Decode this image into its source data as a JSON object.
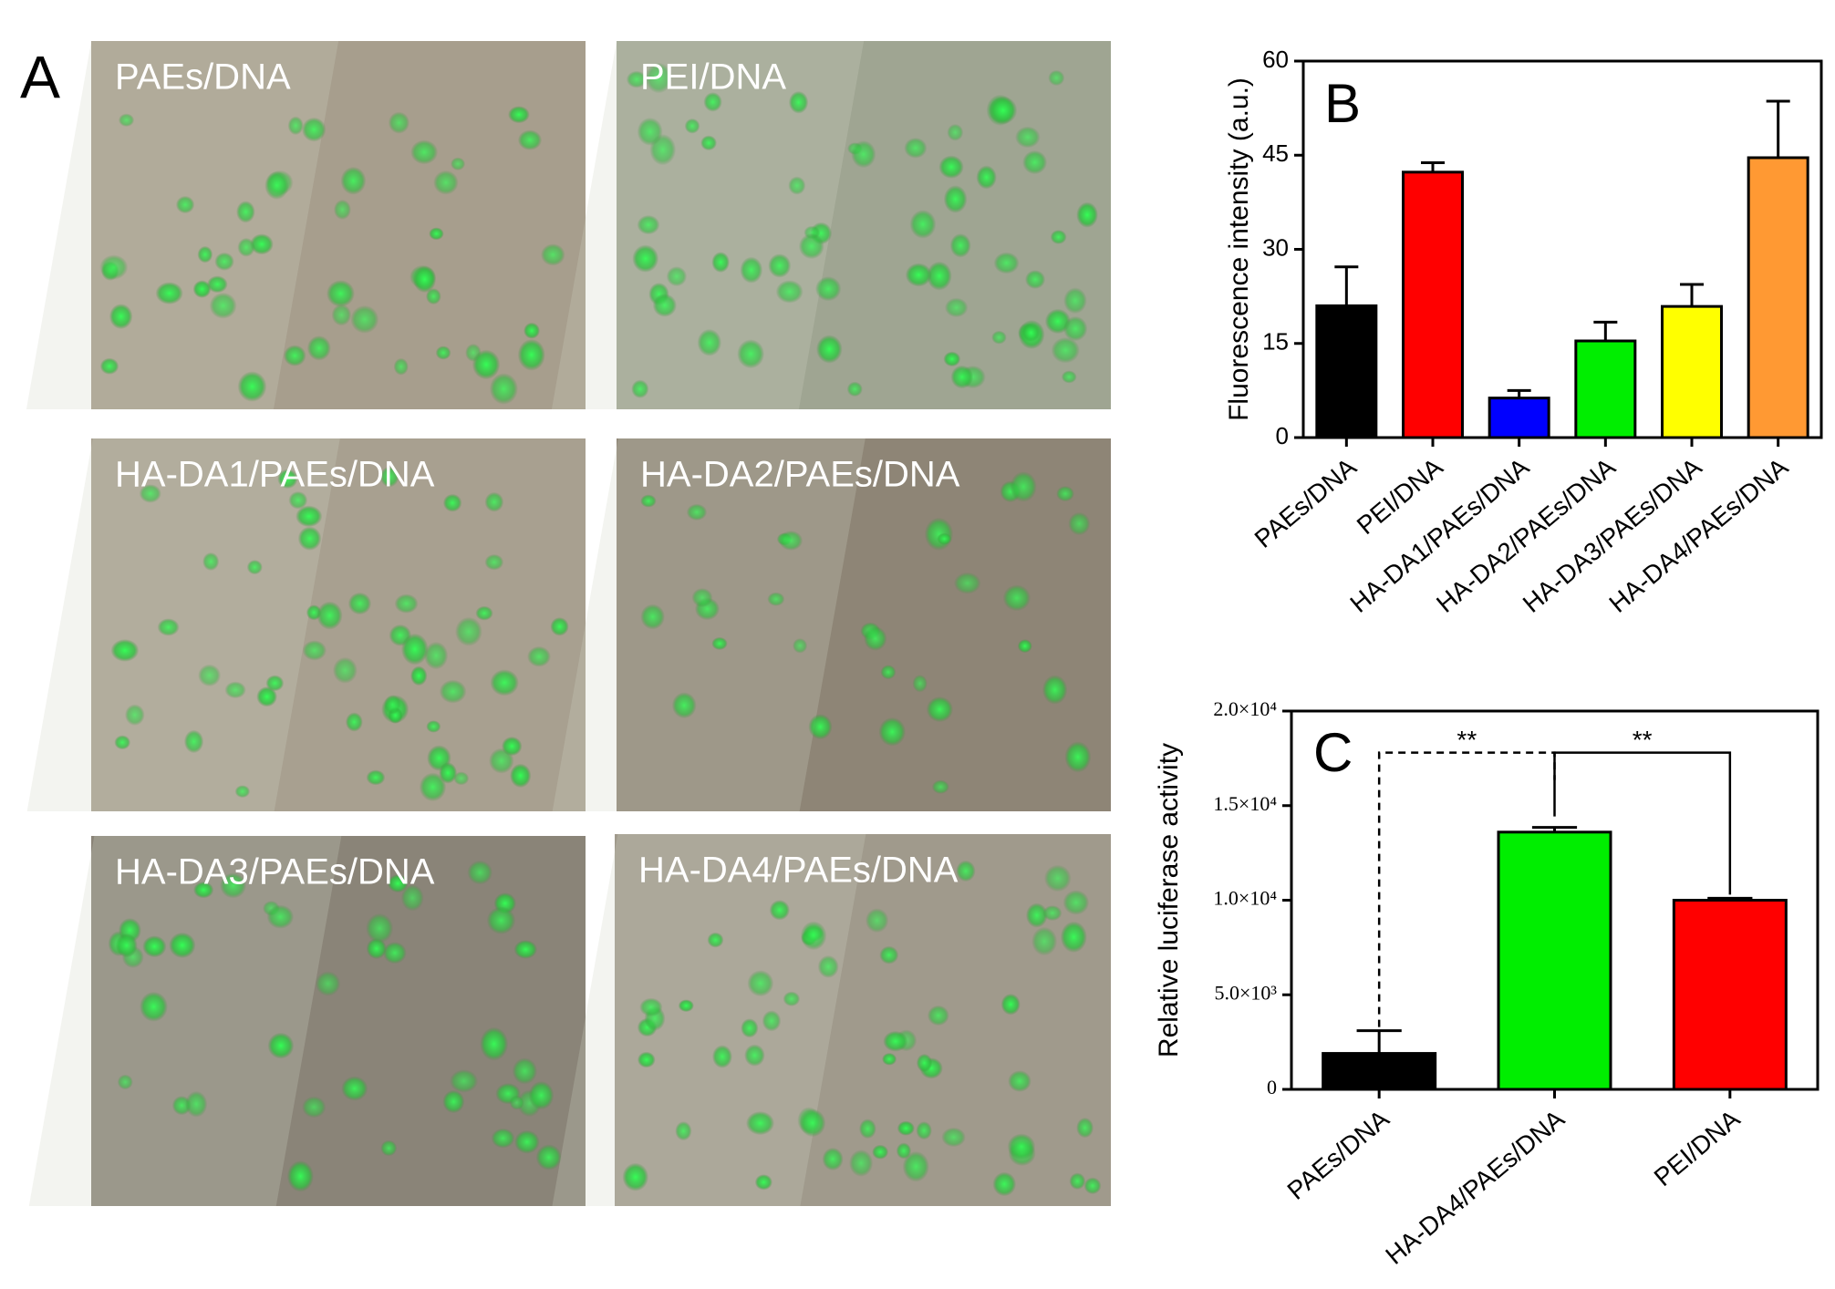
{
  "panel_a": {
    "label": "A",
    "images": [
      "PAEs/DNA",
      "PEI/DNA",
      "HA-DA1/PAEs/DNA",
      "HA-DA2/PAEs/DNA",
      "HA-DA3/PAEs/DNA",
      "HA-DA4/PAEs/DNA"
    ]
  },
  "chart_data": [
    {
      "type": "bar",
      "label": "B",
      "ylabel": "Fluorescence intensity (a.u.)",
      "categories": [
        "PAEs/DNA",
        "PEI/DNA",
        "HA-DA1/PAEs/DNA",
        "HA-DA2/PAEs/DNA",
        "HA-DA3/PAEs/DNA",
        "HA-DA4/PAEs/DNA"
      ],
      "values": [
        21,
        42.3,
        6.3,
        15.4,
        20.9,
        44.6
      ],
      "errors": [
        6.2,
        1.5,
        1.2,
        3,
        3.5,
        9
      ],
      "colors": [
        "#000000",
        "#ff0000",
        "#0000ff",
        "#00ee00",
        "#ffff00",
        "#ff9933"
      ],
      "ylim": [
        0,
        60
      ],
      "yticks": [
        0,
        15,
        30,
        45,
        60
      ]
    },
    {
      "type": "bar",
      "label": "C",
      "ylabel": "Relative luciferase activity",
      "categories": [
        "PAEs/DNA",
        "HA-DA4/PAEs/DNA",
        "PEI/DNA"
      ],
      "values": [
        1900,
        13600,
        10000
      ],
      "errors": [
        1200,
        250,
        100
      ],
      "colors": [
        "#000000",
        "#00ee00",
        "#ff0000"
      ],
      "ylim": [
        0,
        20000
      ],
      "yticks": [
        0,
        {
          "value": 5000,
          "label": "5.0×10³"
        },
        {
          "value": 10000,
          "label": "1.0×10⁴"
        },
        {
          "value": 15000,
          "label": "1.5×10⁴"
        },
        {
          "value": 20000,
          "label": "2.0×10⁴"
        }
      ],
      "annotations": [
        "**",
        "**"
      ]
    }
  ]
}
